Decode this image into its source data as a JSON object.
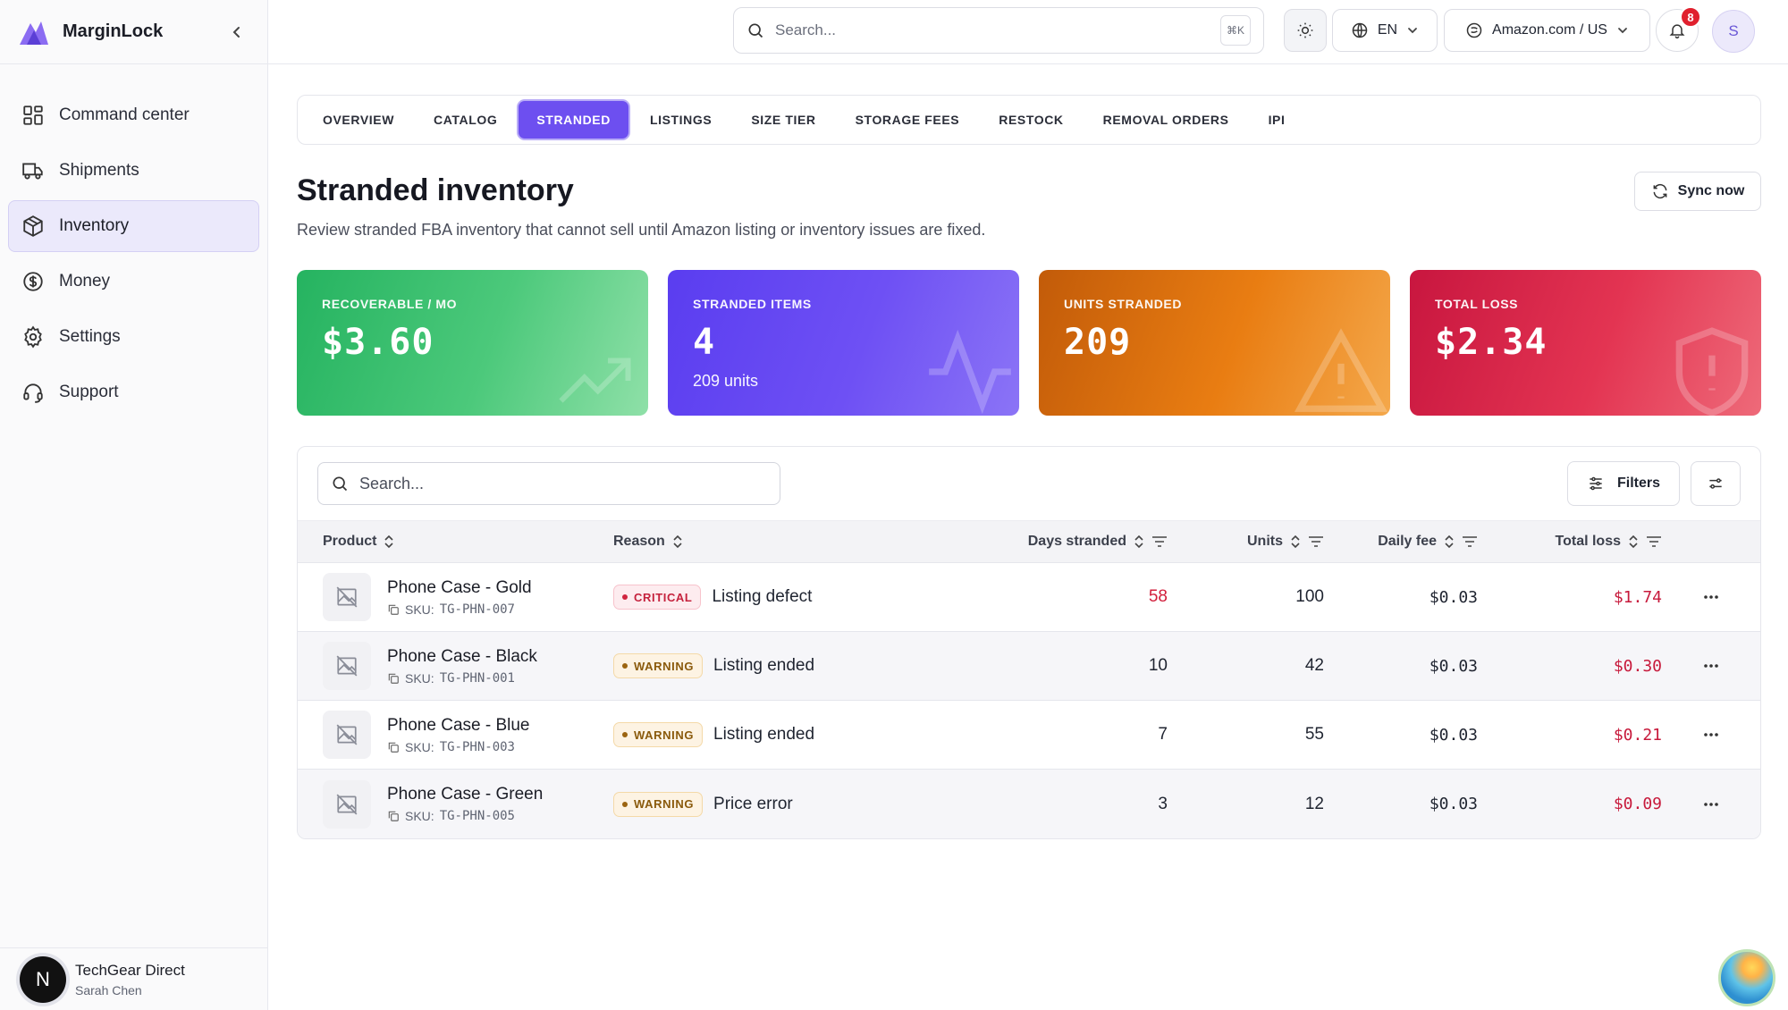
{
  "app": {
    "name": "MarginLock"
  },
  "sidebar": {
    "items": [
      {
        "label": "Command center",
        "icon": "grid-icon",
        "active": false
      },
      {
        "label": "Shipments",
        "icon": "truck-icon",
        "active": false
      },
      {
        "label": "Inventory",
        "icon": "package-icon",
        "active": true
      },
      {
        "label": "Money",
        "icon": "dollar-circle-icon",
        "active": false
      },
      {
        "label": "Settings",
        "icon": "gear-icon",
        "active": false
      },
      {
        "label": "Support",
        "icon": "headset-icon",
        "active": false
      }
    ],
    "footer": {
      "avatar_letter": "N",
      "org": "TechGear Direct",
      "user": "Sarah Chen"
    }
  },
  "topbar": {
    "search_placeholder": "Search...",
    "shortcut": "⌘K",
    "language": "EN",
    "marketplace": "Amazon.com / US",
    "notifications": "8",
    "avatar_letter": "S"
  },
  "tabs": [
    {
      "label": "OVERVIEW",
      "active": false
    },
    {
      "label": "CATALOG",
      "active": false
    },
    {
      "label": "STRANDED",
      "active": true
    },
    {
      "label": "LISTINGS",
      "active": false
    },
    {
      "label": "SIZE TIER",
      "active": false
    },
    {
      "label": "STORAGE FEES",
      "active": false
    },
    {
      "label": "RESTOCK",
      "active": false
    },
    {
      "label": "REMOVAL ORDERS",
      "active": false
    },
    {
      "label": "IPI",
      "active": false
    }
  ],
  "page": {
    "title": "Stranded inventory",
    "subtitle": "Review stranded FBA inventory that cannot sell until Amazon listing or inventory issues are fixed.",
    "sync_label": "Sync now"
  },
  "cards": [
    {
      "label": "RECOVERABLE / MO",
      "value": "$3.60",
      "sub": "",
      "color": "#25b360"
    },
    {
      "label": "STRANDED ITEMS",
      "value": "4",
      "sub": "209 units",
      "color": "#5a3df0"
    },
    {
      "label": "UNITS STRANDED",
      "value": "209",
      "sub": "",
      "color": "#e97d12"
    },
    {
      "label": "TOTAL LOSS",
      "value": "$2.34",
      "sub": "",
      "color": "#c8163f"
    }
  ],
  "table": {
    "search_placeholder": "Search...",
    "filters_label": "Filters",
    "columns": {
      "product": "Product",
      "reason": "Reason",
      "days": "Days stranded",
      "units": "Units",
      "fee": "Daily fee",
      "loss": "Total loss"
    },
    "sku_prefix": "SKU:",
    "rows": [
      {
        "name": "Phone Case - Gold",
        "sku": "TG-PHN-007",
        "severity": "CRITICAL",
        "reason": "Listing defect",
        "days": "58",
        "units": "100",
        "fee": "$0.03",
        "loss": "$1.74"
      },
      {
        "name": "Phone Case - Black",
        "sku": "TG-PHN-001",
        "severity": "WARNING",
        "reason": "Listing ended",
        "days": "10",
        "units": "42",
        "fee": "$0.03",
        "loss": "$0.30"
      },
      {
        "name": "Phone Case - Blue",
        "sku": "TG-PHN-003",
        "severity": "WARNING",
        "reason": "Listing ended",
        "days": "7",
        "units": "55",
        "fee": "$0.03",
        "loss": "$0.21"
      },
      {
        "name": "Phone Case - Green",
        "sku": "TG-PHN-005",
        "severity": "WARNING",
        "reason": "Price error",
        "days": "3",
        "units": "12",
        "fee": "$0.03",
        "loss": "$0.09"
      }
    ]
  }
}
